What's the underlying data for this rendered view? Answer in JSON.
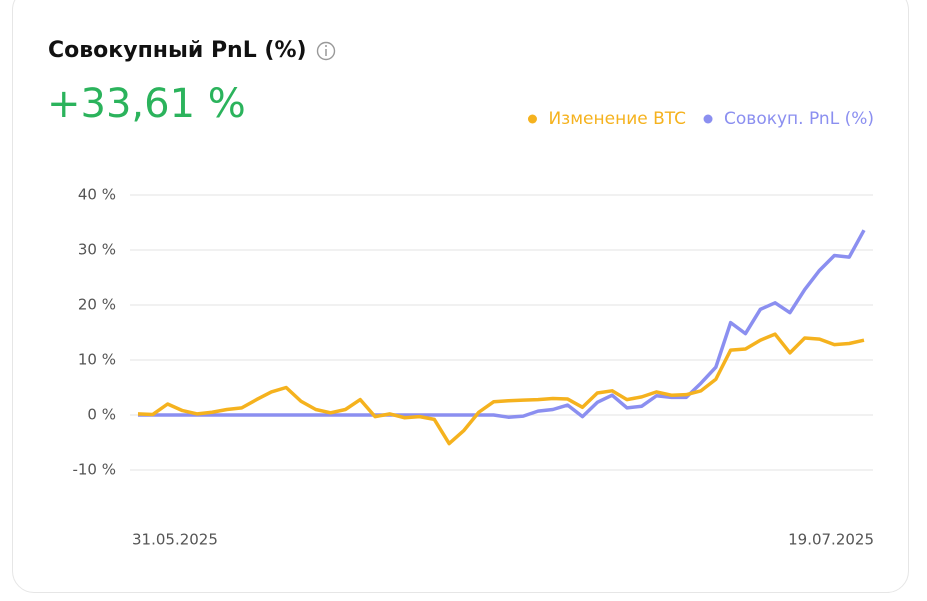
{
  "chart_data": {
    "type": "line",
    "title": "Совокупный PnL (%)",
    "headline": "+33,61 %",
    "categories": [
      "31.05.2025",
      null,
      null,
      null,
      null,
      null,
      null,
      null,
      null,
      null,
      null,
      null,
      null,
      null,
      null,
      null,
      null,
      null,
      null,
      null,
      null,
      null,
      null,
      null,
      null,
      null,
      null,
      null,
      null,
      null,
      null,
      null,
      null,
      null,
      null,
      null,
      null,
      null,
      null,
      null,
      null,
      null,
      null,
      null,
      null,
      null,
      null,
      null,
      null,
      "19.07.2025"
    ],
    "series": [
      {
        "name": "Изменение BTC",
        "color": "#f5b21e",
        "values": [
          0.2,
          0.1,
          2.0,
          0.8,
          0.2,
          0.5,
          1.0,
          1.3,
          2.8,
          4.2,
          5.0,
          2.5,
          1.0,
          0.4,
          1.0,
          2.8,
          -0.3,
          0.2,
          -0.5,
          -0.3,
          -0.8,
          -5.2,
          -2.8,
          0.5,
          2.4,
          2.6,
          2.7,
          2.8,
          3.0,
          2.9,
          1.4,
          4.0,
          4.4,
          2.8,
          3.3,
          4.2,
          3.6,
          3.7,
          4.4,
          6.5,
          11.8,
          12.0,
          13.6,
          14.7,
          11.3,
          14.0,
          13.8,
          12.8,
          13.0,
          13.6
        ]
      },
      {
        "name": "Совокуп. PnL (%)",
        "color": "#8b8ff0",
        "values": [
          0,
          0,
          0,
          0,
          0,
          0,
          0,
          0,
          0,
          0,
          0,
          0,
          0,
          0,
          0,
          0,
          0,
          0,
          0,
          0,
          0,
          0,
          0,
          0,
          0.0,
          -0.4,
          -0.2,
          0.7,
          1.0,
          1.8,
          -0.3,
          2.3,
          3.6,
          1.3,
          1.6,
          3.5,
          3.2,
          3.2,
          5.8,
          8.7,
          16.8,
          14.8,
          19.2,
          20.4,
          18.6,
          22.8,
          26.3,
          29.0,
          28.7,
          33.6
        ]
      }
    ],
    "ylim": [
      -10,
      40
    ],
    "yticks": [
      {
        "value": -10,
        "label": "-10 %"
      },
      {
        "value": 0,
        "label": "0 %"
      },
      {
        "value": 10,
        "label": "10 %"
      },
      {
        "value": 20,
        "label": "20 %"
      },
      {
        "value": 30,
        "label": "30 %"
      },
      {
        "value": 40,
        "label": "40 %"
      }
    ],
    "grid": true
  }
}
